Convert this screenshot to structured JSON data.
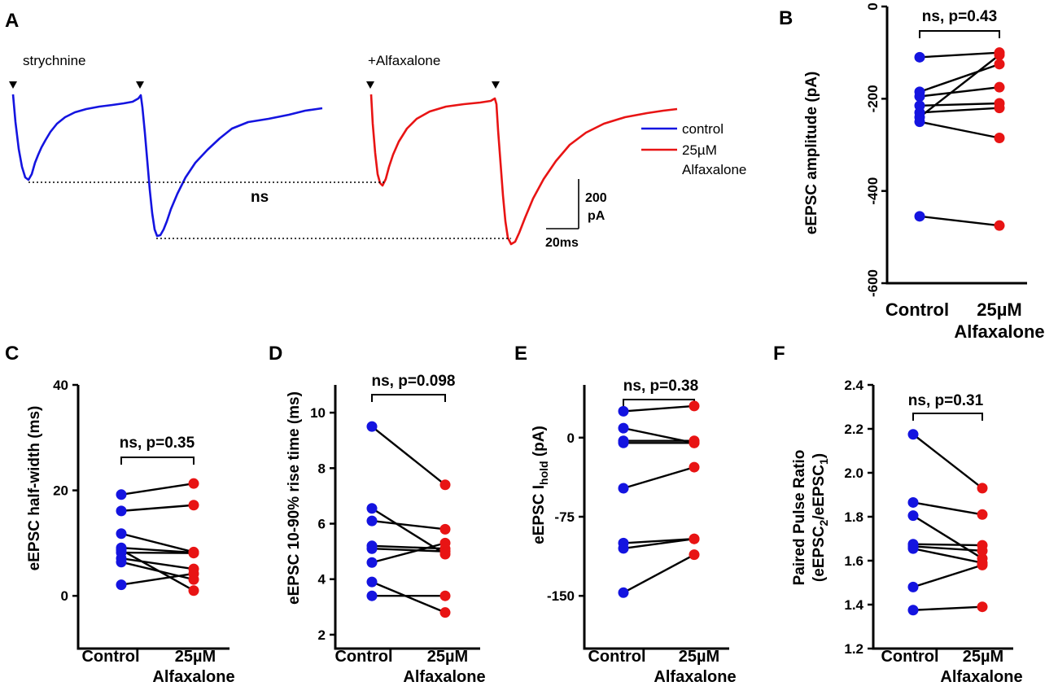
{
  "colors": {
    "control": "#1414e0",
    "drug": "#e81414",
    "axis": "#000000"
  },
  "panelA": {
    "label": "A",
    "trace_labels": [
      "strychnine",
      "+Alfaxalone"
    ],
    "ns": "ns",
    "legend": [
      {
        "label": "control",
        "color": "#1414e0"
      },
      {
        "label": "25µM",
        "label2": "Alfaxalone",
        "color": "#e81414"
      }
    ],
    "scalebar": {
      "y_label": "200",
      "y_unit": "pA",
      "x_label": "20ms"
    }
  },
  "chart_data": [
    {
      "id": "B",
      "label": "B",
      "type": "scatter",
      "title": "",
      "ylabel": "eEPSC amplitude (pA)",
      "categories": [
        "Control",
        "25µM",
        "Alfaxalone"
      ],
      "ylim": [
        -600,
        0
      ],
      "yticks": [
        -600,
        -400,
        -200,
        0
      ],
      "ytick_labels": [
        "-600",
        "-400",
        "-200",
        "0"
      ],
      "stat": "ns, p=0.43",
      "pairs": [
        [
          -110,
          -100
        ],
        [
          -185,
          -125
        ],
        [
          -195,
          -175
        ],
        [
          -215,
          -210
        ],
        [
          -230,
          -220
        ],
        [
          -250,
          -285
        ],
        [
          -455,
          -475
        ],
        [
          -240,
          -105
        ]
      ]
    },
    {
      "id": "C",
      "label": "C",
      "type": "scatter",
      "ylabel": "eEPSC half-width (ms)",
      "categories": [
        "Control",
        "25µM",
        "Alfaxalone"
      ],
      "ylim": [
        -10,
        40
      ],
      "yticks": [
        0,
        20,
        40
      ],
      "ytick_labels": [
        "0",
        "20",
        "40"
      ],
      "stat": "ns, p=0.35",
      "pairs": [
        [
          19.2,
          21.3
        ],
        [
          16.1,
          17.2
        ],
        [
          11.8,
          8.3
        ],
        [
          9.1,
          8.2
        ],
        [
          8.2,
          8.1
        ],
        [
          7.1,
          5.1
        ],
        [
          6.4,
          3.1
        ],
        [
          2.1,
          4.2
        ],
        [
          8.7,
          1.0
        ]
      ]
    },
    {
      "id": "D",
      "label": "D",
      "type": "scatter",
      "ylabel": "eEPSC 10-90% rise time (ms)",
      "categories": [
        "Control",
        "25µM",
        "Alfaxalone"
      ],
      "ylim": [
        1.5,
        11
      ],
      "yticks": [
        2,
        4,
        6,
        8,
        10
      ],
      "ytick_labels": [
        "2",
        "4",
        "6",
        "8",
        "10"
      ],
      "stat": "ns, p=0.098",
      "pairs": [
        [
          9.5,
          7.4
        ],
        [
          6.55,
          4.9
        ],
        [
          6.1,
          5.8
        ],
        [
          5.2,
          5.1
        ],
        [
          5.1,
          5.0
        ],
        [
          4.6,
          5.3
        ],
        [
          3.9,
          2.8
        ],
        [
          3.4,
          3.4
        ]
      ]
    },
    {
      "id": "E",
      "label": "E",
      "type": "scatter",
      "ylabel_main": "eEPSC I",
      "ylabel_sub": "hold",
      "ylabel_end": " (pA)",
      "categories": [
        "Control",
        "25µM",
        "Alfaxalone"
      ],
      "ylim": [
        -200,
        50
      ],
      "yticks": [
        -150,
        -75,
        0
      ],
      "ytick_labels": [
        "-150",
        "-75",
        "0"
      ],
      "stat": "ns, p=0.38",
      "pairs": [
        [
          25,
          30
        ],
        [
          9,
          -5
        ],
        [
          -3,
          -3
        ],
        [
          -5,
          -5
        ],
        [
          -48,
          -28
        ],
        [
          -100,
          -96
        ],
        [
          -105,
          -96
        ],
        [
          -147,
          -111
        ]
      ]
    },
    {
      "id": "F",
      "label": "F",
      "type": "scatter",
      "ylabel": "Paired Pulse Ratio",
      "ylabel2_main": "(eEPSC",
      "ylabel2_sub1": "2",
      "ylabel2_mid": "/eEPSC",
      "ylabel2_sub2": "1",
      "ylabel2_end": ")",
      "categories": [
        "Control",
        "25µM",
        "Alfaxalone"
      ],
      "ylim": [
        1.2,
        2.4
      ],
      "yticks": [
        1.2,
        1.4,
        1.6,
        1.8,
        2.0,
        2.2,
        2.4
      ],
      "ytick_labels": [
        "1.2",
        "1.4",
        "1.6",
        "1.8",
        "2.0",
        "2.2",
        "2.4"
      ],
      "stat": "ns, p=0.31",
      "pairs": [
        [
          2.175,
          1.93
        ],
        [
          1.865,
          1.81
        ],
        [
          1.805,
          1.61
        ],
        [
          1.675,
          1.67
        ],
        [
          1.665,
          1.645
        ],
        [
          1.655,
          1.59
        ],
        [
          1.48,
          1.58
        ],
        [
          1.375,
          1.39
        ]
      ]
    }
  ]
}
